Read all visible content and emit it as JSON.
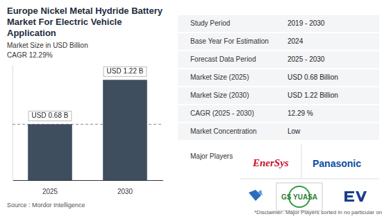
{
  "chart_data": {
    "type": "bar",
    "title": "Europe Nickel Metal Hydride Battery Market For Electric Vehicle Application",
    "subtitle": "Market Size in USD Billion",
    "annotation": "CAGR 12.29%",
    "categories": [
      "2025",
      "2030"
    ],
    "values": [
      0.68,
      1.22
    ],
    "value_labels": [
      "USD 0.68 B",
      "USD 1.22 B"
    ],
    "color": "#3f4e5e",
    "ylim": [
      0,
      1.4
    ],
    "grid": false,
    "data_labels": true,
    "tick_labels": "x"
  },
  "source": "Source : Mordor Intelligence",
  "panel": {
    "rows": [
      [
        "Study Period",
        "2019 - 2030"
      ],
      [
        "Base Year For Estimation",
        "2024"
      ],
      [
        "Forecast Data Period",
        "2025 - 2030"
      ],
      [
        "Market Size (2025)",
        "USD 0.68 Billion"
      ],
      [
        "Market Size (2030)",
        "USD 1.22 Billion"
      ],
      [
        "CAGR (2025 - 2030)",
        "12.29 %"
      ],
      [
        "Market Concentration",
        "Low"
      ]
    ],
    "players_title": "Major Players",
    "players": [
      "EnerSys",
      "Panasonic",
      "GS YUASA"
    ],
    "disclaimer": "*Disclaimer: Major Players sorted in no particular order"
  }
}
